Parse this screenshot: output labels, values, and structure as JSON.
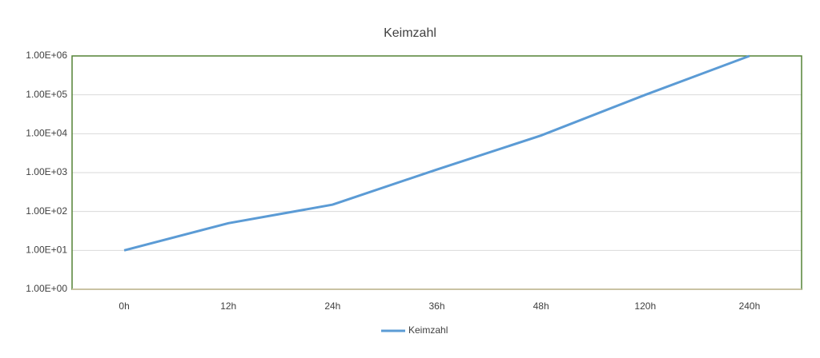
{
  "chart_data": {
    "type": "line",
    "title": "Keimzahl",
    "categories": [
      "0h",
      "12h",
      "24h",
      "36h",
      "48h",
      "120h",
      "240h"
    ],
    "series": [
      {
        "name": "Keimzahl",
        "color": "#5b9bd5",
        "values": [
          10,
          50,
          150,
          1200,
          9000,
          100000,
          1000000
        ]
      }
    ],
    "ylim": [
      1,
      1000000
    ],
    "log_y": true,
    "yticks": [
      {
        "value": 1,
        "label": "1.00E+00"
      },
      {
        "value": 10,
        "label": "1.00E+01"
      },
      {
        "value": 100,
        "label": "1.00E+02"
      },
      {
        "value": 1000,
        "label": "1.00E+03"
      },
      {
        "value": 10000,
        "label": "1.00E+04"
      },
      {
        "value": 100000,
        "label": "1.00E+05"
      },
      {
        "value": 1000000,
        "label": "1.00E+06"
      }
    ],
    "grid": true,
    "legend": "bottom"
  }
}
